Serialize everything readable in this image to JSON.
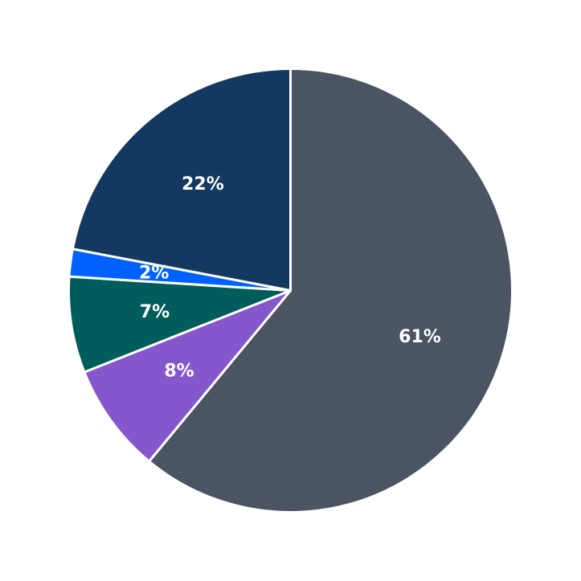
{
  "chart_data": {
    "type": "pie",
    "title": "",
    "start_angle_deg": 90,
    "direction": "clockwise",
    "slices": [
      {
        "label": "61%",
        "value": 61,
        "color": "#4a5463"
      },
      {
        "label": "8%",
        "value": 8,
        "color": "#8557cc"
      },
      {
        "label": "7%",
        "value": 7,
        "color": "#015c5c"
      },
      {
        "label": "2%",
        "value": 2,
        "color": "#0061fe"
      },
      {
        "label": "22%",
        "value": 22,
        "color": "#143961"
      }
    ]
  }
}
